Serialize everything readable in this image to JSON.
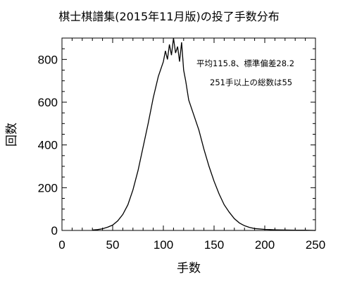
{
  "chart_data": {
    "type": "line",
    "title": "棋士棋譜集(2015年11月版)の投了手数分布",
    "xlabel": "手数",
    "ylabel": "回数",
    "xlim": [
      0,
      250
    ],
    "ylim": [
      0,
      900
    ],
    "xticks": [
      0,
      50,
      100,
      150,
      200,
      250
    ],
    "yticks": [
      0,
      200,
      400,
      600,
      800
    ],
    "grid": false,
    "annotations": [
      "平均115.8、標準偏差28.2",
      "251手以上の総数は55"
    ],
    "x": [
      30,
      35,
      40,
      45,
      50,
      55,
      60,
      65,
      70,
      75,
      80,
      85,
      90,
      95,
      100,
      102,
      104,
      106,
      108,
      110,
      112,
      114,
      116,
      118,
      120,
      122,
      125,
      130,
      135,
      140,
      145,
      150,
      155,
      160,
      165,
      170,
      175,
      180,
      185,
      190,
      200,
      210,
      220,
      230,
      240,
      250
    ],
    "y": [
      2,
      4,
      8,
      15,
      25,
      45,
      75,
      120,
      190,
      280,
      390,
      500,
      620,
      720,
      790,
      840,
      800,
      870,
      820,
      900,
      830,
      860,
      790,
      880,
      750,
      700,
      610,
      540,
      470,
      380,
      300,
      230,
      170,
      120,
      85,
      55,
      35,
      22,
      14,
      9,
      5,
      3,
      2,
      1,
      1,
      0
    ]
  }
}
